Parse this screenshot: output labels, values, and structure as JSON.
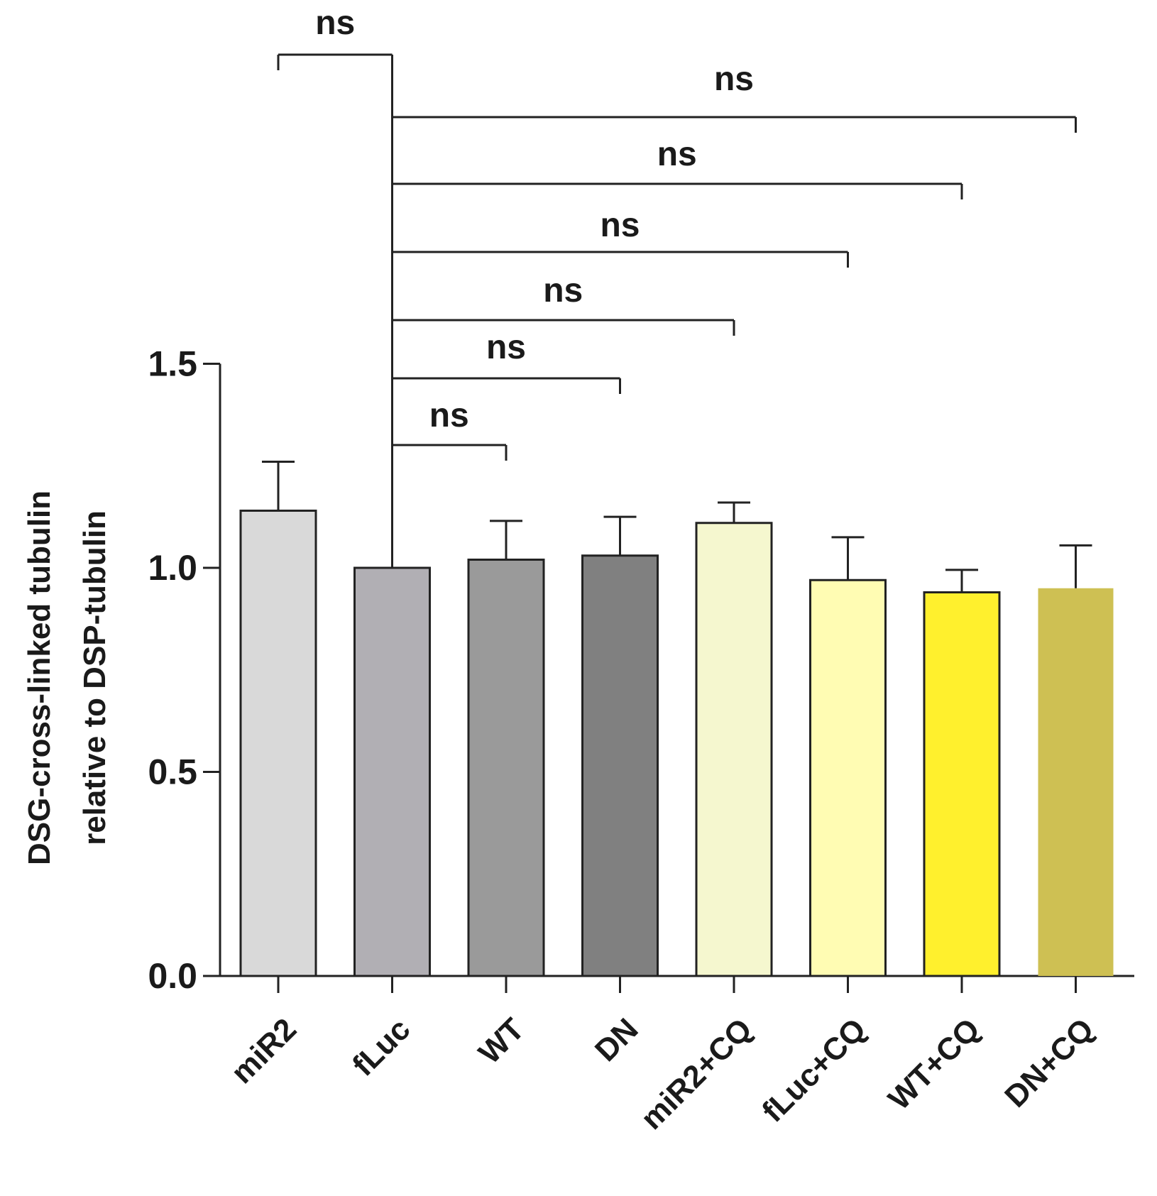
{
  "chart_data": {
    "type": "bar",
    "title": "",
    "xlabel": "",
    "ylabel_lines": [
      "DSG-cross-linked tubulin",
      "relative to DSP-tubulin"
    ],
    "ylim": [
      0,
      1.5
    ],
    "yticks": [
      0.0,
      0.5,
      1.0,
      1.5
    ],
    "ytick_labels": [
      "0.0",
      "0.5",
      "1.0",
      "1.5"
    ],
    "categories": [
      "miR2",
      "fLuc",
      "WT",
      "DN",
      "miR2+CQ",
      "fLuc+CQ",
      "WT+CQ",
      "DN+CQ"
    ],
    "values": [
      1.14,
      1.0,
      1.02,
      1.03,
      1.11,
      0.97,
      0.94,
      0.95
    ],
    "errors": [
      0.12,
      0.0,
      0.095,
      0.095,
      0.05,
      0.105,
      0.055,
      0.105
    ],
    "colors": [
      "#d9d9d9",
      "#b1afb4",
      "#9a9a9a",
      "#808080",
      "#f5f7cf",
      "#fffcb3",
      "#fff02d",
      "#cec053"
    ],
    "reference_category": "fLuc",
    "comparisons": [
      {
        "group1": "miR2",
        "group2": "fLuc",
        "label": "ns"
      },
      {
        "group1": "fLuc",
        "group2": "DN+CQ",
        "label": "ns"
      },
      {
        "group1": "fLuc",
        "group2": "WT+CQ",
        "label": "ns"
      },
      {
        "group1": "fLuc",
        "group2": "fLuc+CQ",
        "label": "ns"
      },
      {
        "group1": "fLuc",
        "group2": "miR2+CQ",
        "label": "ns"
      },
      {
        "group1": "fLuc",
        "group2": "DN",
        "label": "ns"
      },
      {
        "group1": "fLuc",
        "group2": "WT",
        "label": "ns"
      }
    ]
  }
}
